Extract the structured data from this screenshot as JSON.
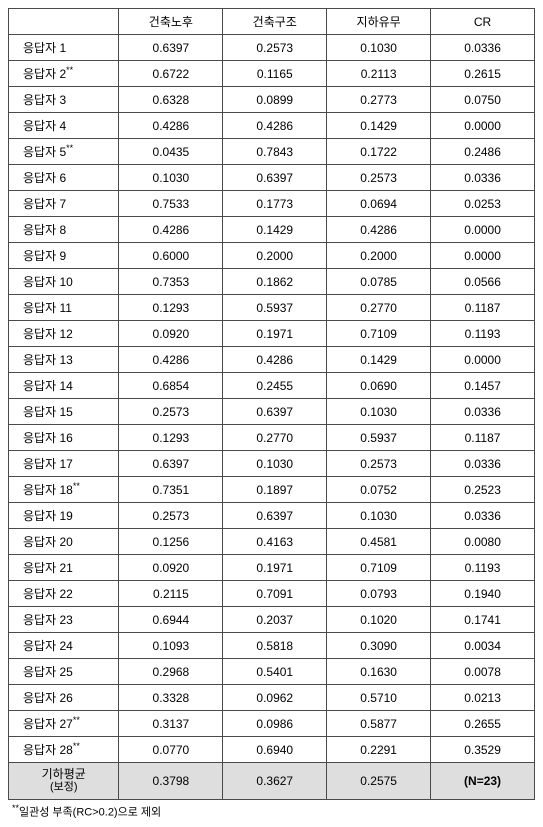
{
  "columns": [
    "건축노후",
    "건축구조",
    "지하유무",
    "CR"
  ],
  "row_label_prefix": "응답자 ",
  "star_marker": "**",
  "rows": [
    {
      "n": 1,
      "star": false,
      "v": [
        "0.6397",
        "0.2573",
        "0.1030",
        "0.0336"
      ]
    },
    {
      "n": 2,
      "star": true,
      "v": [
        "0.6722",
        "0.1165",
        "0.2113",
        "0.2615"
      ]
    },
    {
      "n": 3,
      "star": false,
      "v": [
        "0.6328",
        "0.0899",
        "0.2773",
        "0.0750"
      ]
    },
    {
      "n": 4,
      "star": false,
      "v": [
        "0.4286",
        "0.4286",
        "0.1429",
        "0.0000"
      ]
    },
    {
      "n": 5,
      "star": true,
      "v": [
        "0.0435",
        "0.7843",
        "0.1722",
        "0.2486"
      ]
    },
    {
      "n": 6,
      "star": false,
      "v": [
        "0.1030",
        "0.6397",
        "0.2573",
        "0.0336"
      ]
    },
    {
      "n": 7,
      "star": false,
      "v": [
        "0.7533",
        "0.1773",
        "0.0694",
        "0.0253"
      ]
    },
    {
      "n": 8,
      "star": false,
      "v": [
        "0.4286",
        "0.1429",
        "0.4286",
        "0.0000"
      ]
    },
    {
      "n": 9,
      "star": false,
      "v": [
        "0.6000",
        "0.2000",
        "0.2000",
        "0.0000"
      ]
    },
    {
      "n": 10,
      "star": false,
      "v": [
        "0.7353",
        "0.1862",
        "0.0785",
        "0.0566"
      ]
    },
    {
      "n": 11,
      "star": false,
      "v": [
        "0.1293",
        "0.5937",
        "0.2770",
        "0.1187"
      ]
    },
    {
      "n": 12,
      "star": false,
      "v": [
        "0.0920",
        "0.1971",
        "0.7109",
        "0.1193"
      ]
    },
    {
      "n": 13,
      "star": false,
      "v": [
        "0.4286",
        "0.4286",
        "0.1429",
        "0.0000"
      ]
    },
    {
      "n": 14,
      "star": false,
      "v": [
        "0.6854",
        "0.2455",
        "0.0690",
        "0.1457"
      ]
    },
    {
      "n": 15,
      "star": false,
      "v": [
        "0.2573",
        "0.6397",
        "0.1030",
        "0.0336"
      ]
    },
    {
      "n": 16,
      "star": false,
      "v": [
        "0.1293",
        "0.2770",
        "0.5937",
        "0.1187"
      ]
    },
    {
      "n": 17,
      "star": false,
      "v": [
        "0.6397",
        "0.1030",
        "0.2573",
        "0.0336"
      ]
    },
    {
      "n": 18,
      "star": true,
      "v": [
        "0.7351",
        "0.1897",
        "0.0752",
        "0.2523"
      ]
    },
    {
      "n": 19,
      "star": false,
      "v": [
        "0.2573",
        "0.6397",
        "0.1030",
        "0.0336"
      ]
    },
    {
      "n": 20,
      "star": false,
      "v": [
        "0.1256",
        "0.4163",
        "0.4581",
        "0.0080"
      ]
    },
    {
      "n": 21,
      "star": false,
      "v": [
        "0.0920",
        "0.1971",
        "0.7109",
        "0.1193"
      ]
    },
    {
      "n": 22,
      "star": false,
      "v": [
        "0.2115",
        "0.7091",
        "0.0793",
        "0.1940"
      ]
    },
    {
      "n": 23,
      "star": false,
      "v": [
        "0.6944",
        "0.2037",
        "0.1020",
        "0.1741"
      ]
    },
    {
      "n": 24,
      "star": false,
      "v": [
        "0.1093",
        "0.5818",
        "0.3090",
        "0.0034"
      ]
    },
    {
      "n": 25,
      "star": false,
      "v": [
        "0.2968",
        "0.5401",
        "0.1630",
        "0.0078"
      ]
    },
    {
      "n": 26,
      "star": false,
      "v": [
        "0.3328",
        "0.0962",
        "0.5710",
        "0.0213"
      ]
    },
    {
      "n": 27,
      "star": true,
      "v": [
        "0.3137",
        "0.0986",
        "0.5877",
        "0.2655"
      ]
    },
    {
      "n": 28,
      "star": true,
      "v": [
        "0.0770",
        "0.6940",
        "0.2291",
        "0.3529"
      ]
    }
  ],
  "summary": {
    "label_main": "기하평균",
    "label_sub": "(보정)",
    "v": [
      "0.3798",
      "0.3627",
      "0.2575",
      "(N=23)"
    ]
  },
  "footnote": "일관성 부족(RC>0.2)으로 제외",
  "footnote_marker": "**"
}
